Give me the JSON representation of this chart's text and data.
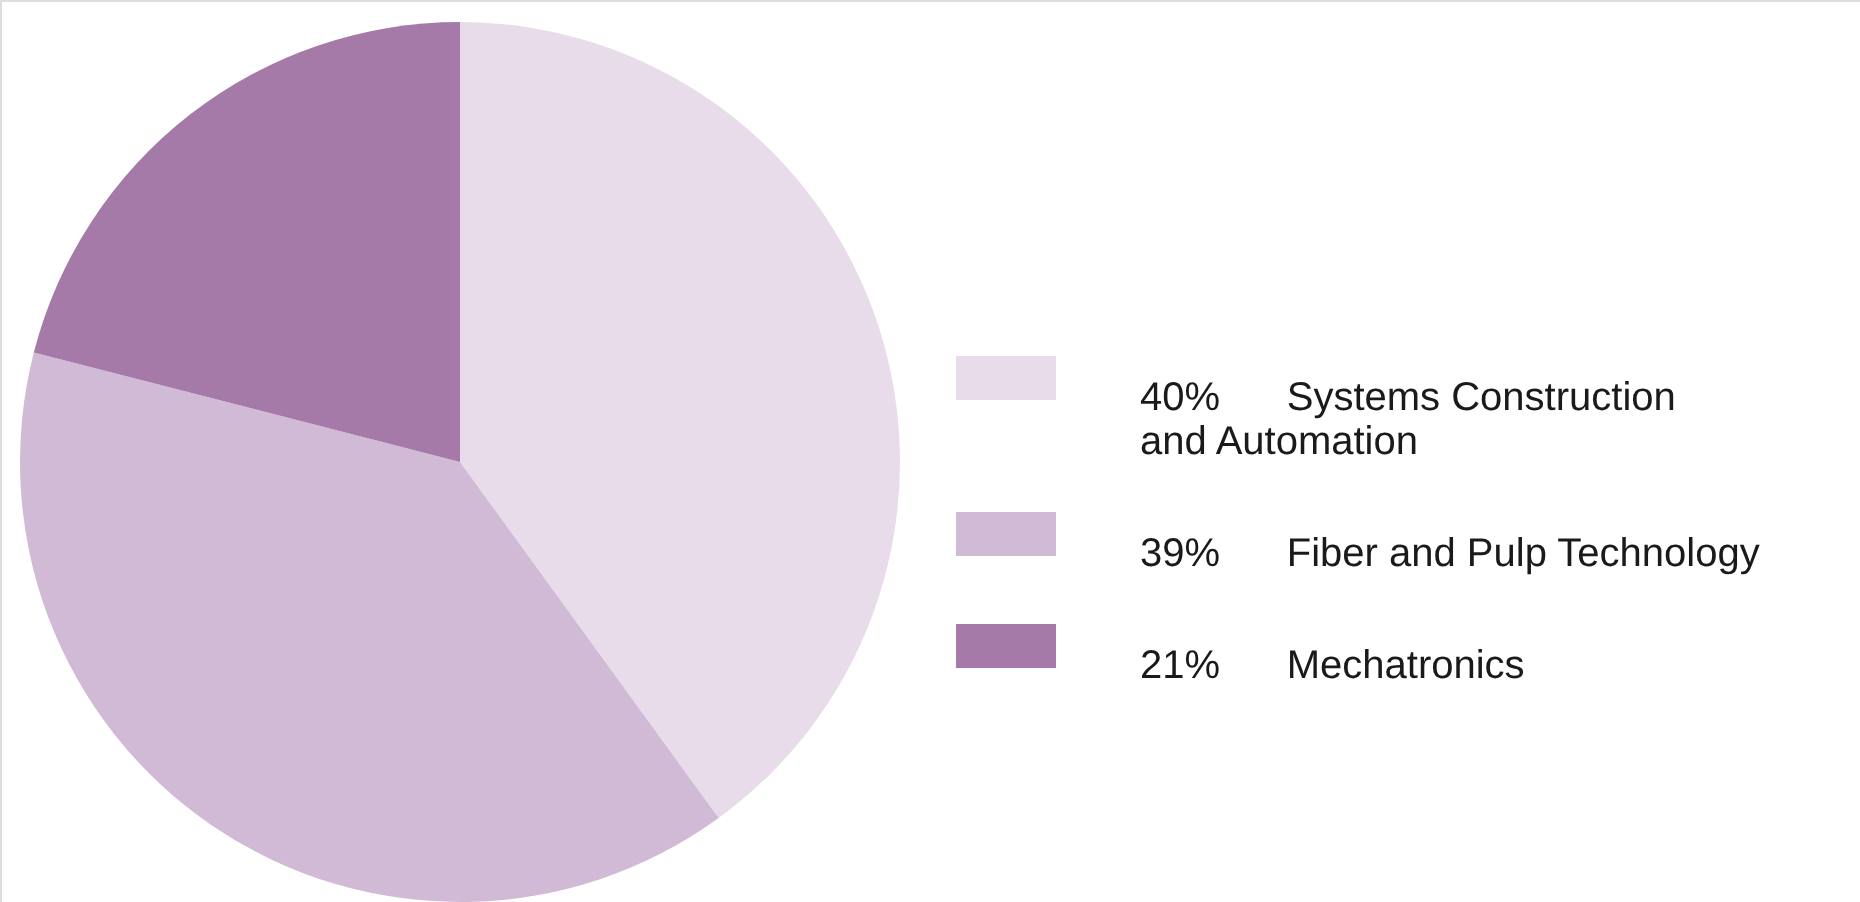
{
  "chart_data": {
    "type": "pie",
    "categories": [
      "Systems Construction\nand Automation",
      "Fiber and Pulp Technology",
      "Mechatronics"
    ],
    "values": [
      40,
      39,
      21
    ],
    "value_labels": [
      "40%",
      "39%",
      "21%"
    ],
    "colors": [
      "#e8dcea",
      "#d0bad5",
      "#a67aa8"
    ],
    "legend": "right"
  }
}
